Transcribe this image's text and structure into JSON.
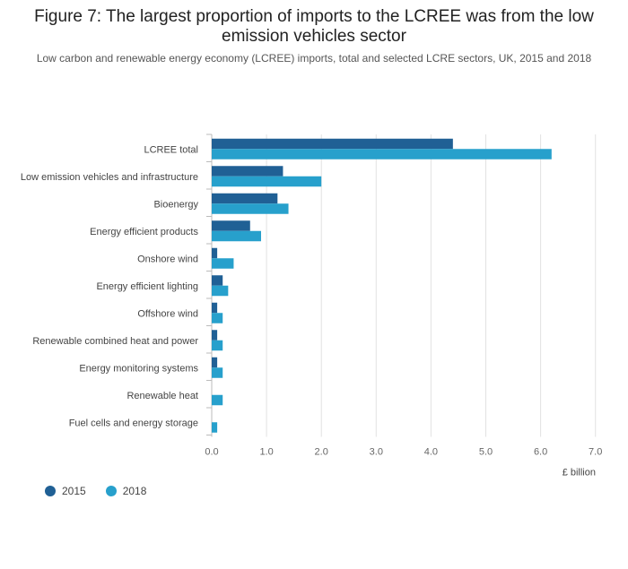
{
  "title": "Figure 7: The largest proportion of imports to the LCREE was from the low emission vehicles sector",
  "subtitle": "Low carbon and renewable energy economy (LCREE) imports, total and selected LCRE sectors, UK, 2015 and 2018",
  "colors": {
    "s2015": "#206095",
    "s2018": "#27A0CC",
    "grid": "#E2E2E2",
    "axis": "#BBBBBB"
  },
  "chart_data": {
    "type": "bar",
    "orientation": "horizontal",
    "title": "Figure 7: The largest proportion of imports to the LCREE was from the low emission vehicles sector",
    "subtitle": "Low carbon and renewable energy economy (LCREE) imports, total and selected LCRE sectors, UK, 2015 and 2018",
    "xlabel": "£ billion",
    "ylabel": "",
    "xlim": [
      0,
      7
    ],
    "xticks": [
      "0.0",
      "1.0",
      "2.0",
      "3.0",
      "4.0",
      "5.0",
      "6.0",
      "7.0"
    ],
    "grid": true,
    "legend_position": "bottom-left",
    "categories": [
      "LCREE total",
      "Low emission vehicles and infrastructure",
      "Bioenergy",
      "Energy efficient products",
      "Onshore wind",
      "Energy efficient lighting",
      "Offshore wind",
      "Renewable combined heat and power",
      "Energy monitoring systems",
      "Renewable heat",
      "Fuel cells and energy storage"
    ],
    "series": [
      {
        "name": "2015",
        "values": [
          4.4,
          1.3,
          1.2,
          0.7,
          0.1,
          0.2,
          0.1,
          0.1,
          0.1,
          0.0,
          0.0
        ]
      },
      {
        "name": "2018",
        "values": [
          6.2,
          2.0,
          1.4,
          0.9,
          0.4,
          0.3,
          0.2,
          0.2,
          0.2,
          0.2,
          0.1
        ]
      }
    ]
  }
}
